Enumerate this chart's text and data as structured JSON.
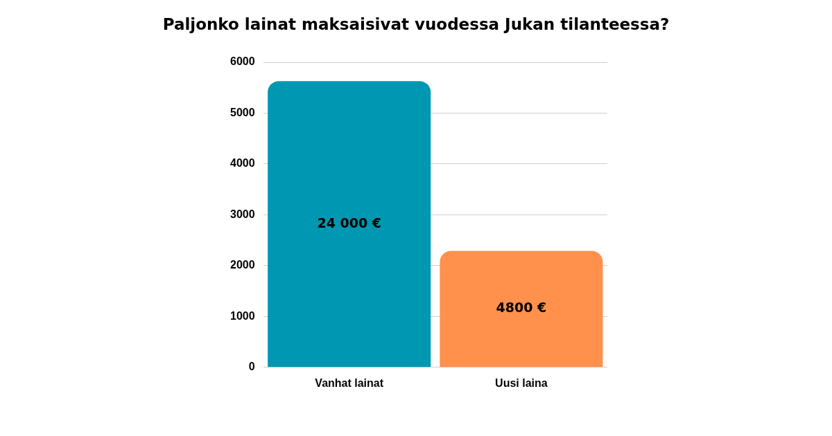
{
  "chart_data": {
    "type": "bar",
    "title": "Paljonko lainat maksaisivat vuodessa Jukan tilanteessa?",
    "categories": [
      "Vanhat lainat",
      "Uusi laina"
    ],
    "values": [
      5630,
      2290
    ],
    "colors": [
      "#0097b2",
      "#ff914d"
    ],
    "annotations": [
      "24 000 €",
      "4800 €"
    ],
    "ylim": [
      0,
      6000
    ],
    "yticks": [
      0,
      1000,
      2000,
      3000,
      4000,
      5000,
      6000
    ],
    "grid": "y",
    "legend": false
  }
}
